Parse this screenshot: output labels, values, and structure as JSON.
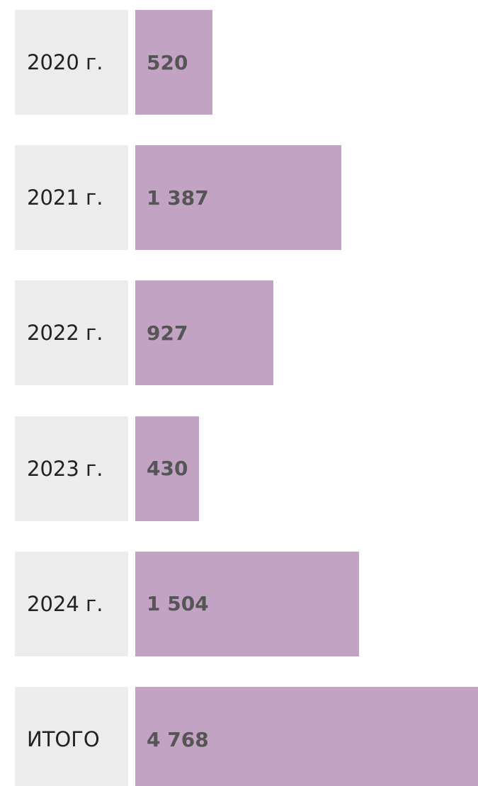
{
  "chart_data": {
    "type": "bar",
    "orientation": "horizontal",
    "categories": [
      "2020 г.",
      "2021 г.",
      "2022 г.",
      "2023 г.",
      "2024 г.",
      "ИТОГО"
    ],
    "values": [
      520,
      1387,
      927,
      430,
      1504,
      4768
    ],
    "value_labels": [
      "520",
      "1 387",
      "927",
      "430",
      "1 504",
      "4 768"
    ],
    "color": "#c2a3c4"
  }
}
